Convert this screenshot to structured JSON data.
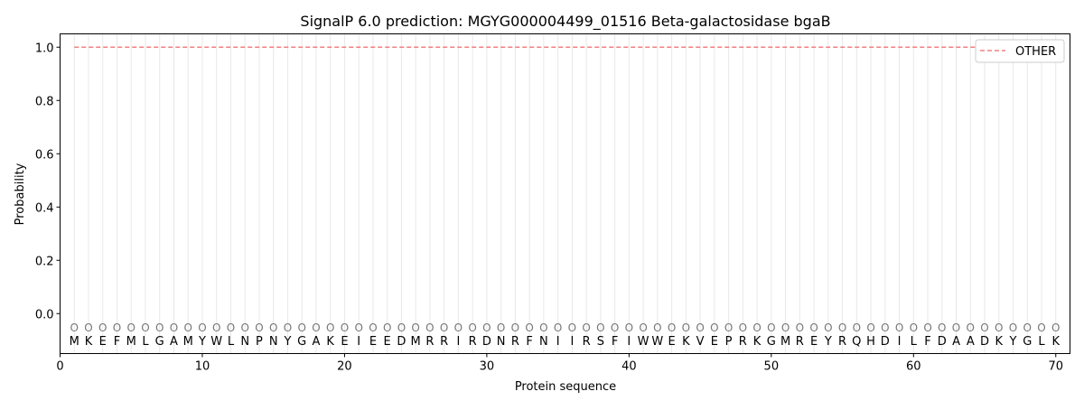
{
  "chart_data": {
    "type": "line",
    "title": "SignalP 6.0 prediction: MGYG000004499_01516 Beta-galactosidase bgaB",
    "xlabel": "Protein sequence",
    "ylabel": "Probability",
    "xlim": [
      0,
      71
    ],
    "ylim": [
      -0.15,
      1.05
    ],
    "xticks": [
      0,
      10,
      20,
      30,
      40,
      50,
      60,
      70
    ],
    "yticks": [
      0.0,
      0.2,
      0.4,
      0.6,
      0.8,
      1.0
    ],
    "ytick_labels": [
      "0.0",
      "0.2",
      "0.4",
      "0.6",
      "0.8",
      "1.0"
    ],
    "grid": "vertical lines at each residue",
    "legend_position": "top-right",
    "sequence": [
      "M",
      "K",
      "E",
      "F",
      "M",
      "L",
      "G",
      "A",
      "M",
      "Y",
      "W",
      "L",
      "N",
      "P",
      "N",
      "Y",
      "G",
      "A",
      "K",
      "E",
      "I",
      "E",
      "E",
      "D",
      "M",
      "R",
      "R",
      "I",
      "R",
      "D",
      "N",
      "R",
      "F",
      "N",
      "I",
      "I",
      "R",
      "S",
      "F",
      "I",
      "W",
      "W",
      "E",
      "K",
      "V",
      "E",
      "P",
      "R",
      "K",
      "G",
      "M",
      "R",
      "E",
      "Y",
      "R",
      "Q",
      "H",
      "D",
      "I",
      "L",
      "F",
      "D",
      "A",
      "A",
      "D",
      "K",
      "Y",
      "G",
      "L",
      "K"
    ],
    "predicted_labels": "OOOOOOOOOOOOOOOOOOOOOOOOOOOOOOOOOOOOOOOOOOOOOOOOOOOOOOOOOOOOOOOOOOOOOO",
    "series": [
      {
        "name": "OTHER",
        "color": "#f08080",
        "style": "dashed",
        "x_start": 1,
        "x_end": 70,
        "value": 1.0
      }
    ]
  }
}
